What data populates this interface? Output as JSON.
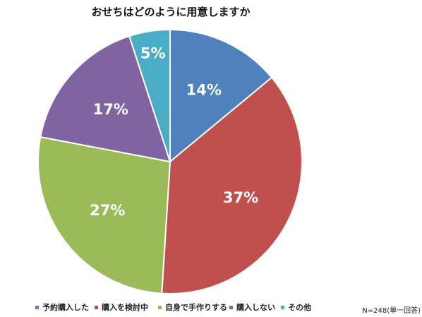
{
  "chart_data": {
    "type": "pie",
    "title": "おせちはどのように用意しますか",
    "categories": [
      "予約購入した",
      "購入を検討中",
      "自身で手作りする",
      "購入しない",
      "その他"
    ],
    "values": [
      14,
      37,
      27,
      17,
      5
    ],
    "value_labels": [
      "14%",
      "37%",
      "27%",
      "17%",
      "5%"
    ],
    "colors": [
      "#4f81bd",
      "#c0504d",
      "#9bbb59",
      "#8064a2",
      "#4bacc6"
    ],
    "legend_position": "bottom",
    "start_angle_deg": 0,
    "direction": "clockwise",
    "note": "N=248(単一回答)"
  }
}
